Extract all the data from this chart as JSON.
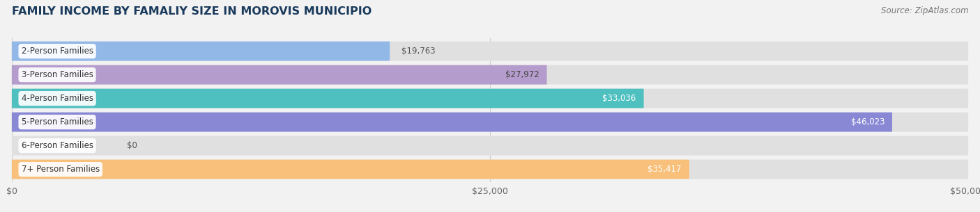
{
  "title": "FAMILY INCOME BY FAMALIY SIZE IN MOROVIS MUNICIPIO",
  "source": "Source: ZipAtlas.com",
  "categories": [
    "2-Person Families",
    "3-Person Families",
    "4-Person Families",
    "5-Person Families",
    "6-Person Families",
    "7+ Person Families"
  ],
  "values": [
    19763,
    27972,
    33036,
    46023,
    0,
    35417
  ],
  "bar_colors": [
    "#92b8e8",
    "#b49ccc",
    "#4ec0c0",
    "#8888d4",
    "#f4a8b8",
    "#f8c07a"
  ],
  "value_label_colors": [
    "#444444",
    "#444444",
    "#ffffff",
    "#ffffff",
    "#444444",
    "#ffffff"
  ],
  "x_ticks": [
    0,
    25000,
    50000
  ],
  "x_tick_labels": [
    "$0",
    "$25,000",
    "$50,000"
  ],
  "xlim": [
    0,
    50000
  ],
  "background_color": "#f2f2f2",
  "bar_bg_color": "#e0e0e0",
  "title_color": "#1a3a5c",
  "source_color": "#777777",
  "title_fontsize": 11.5,
  "source_fontsize": 8.5,
  "bar_label_fontsize": 8.5,
  "category_fontsize": 8.5,
  "tick_fontsize": 9
}
